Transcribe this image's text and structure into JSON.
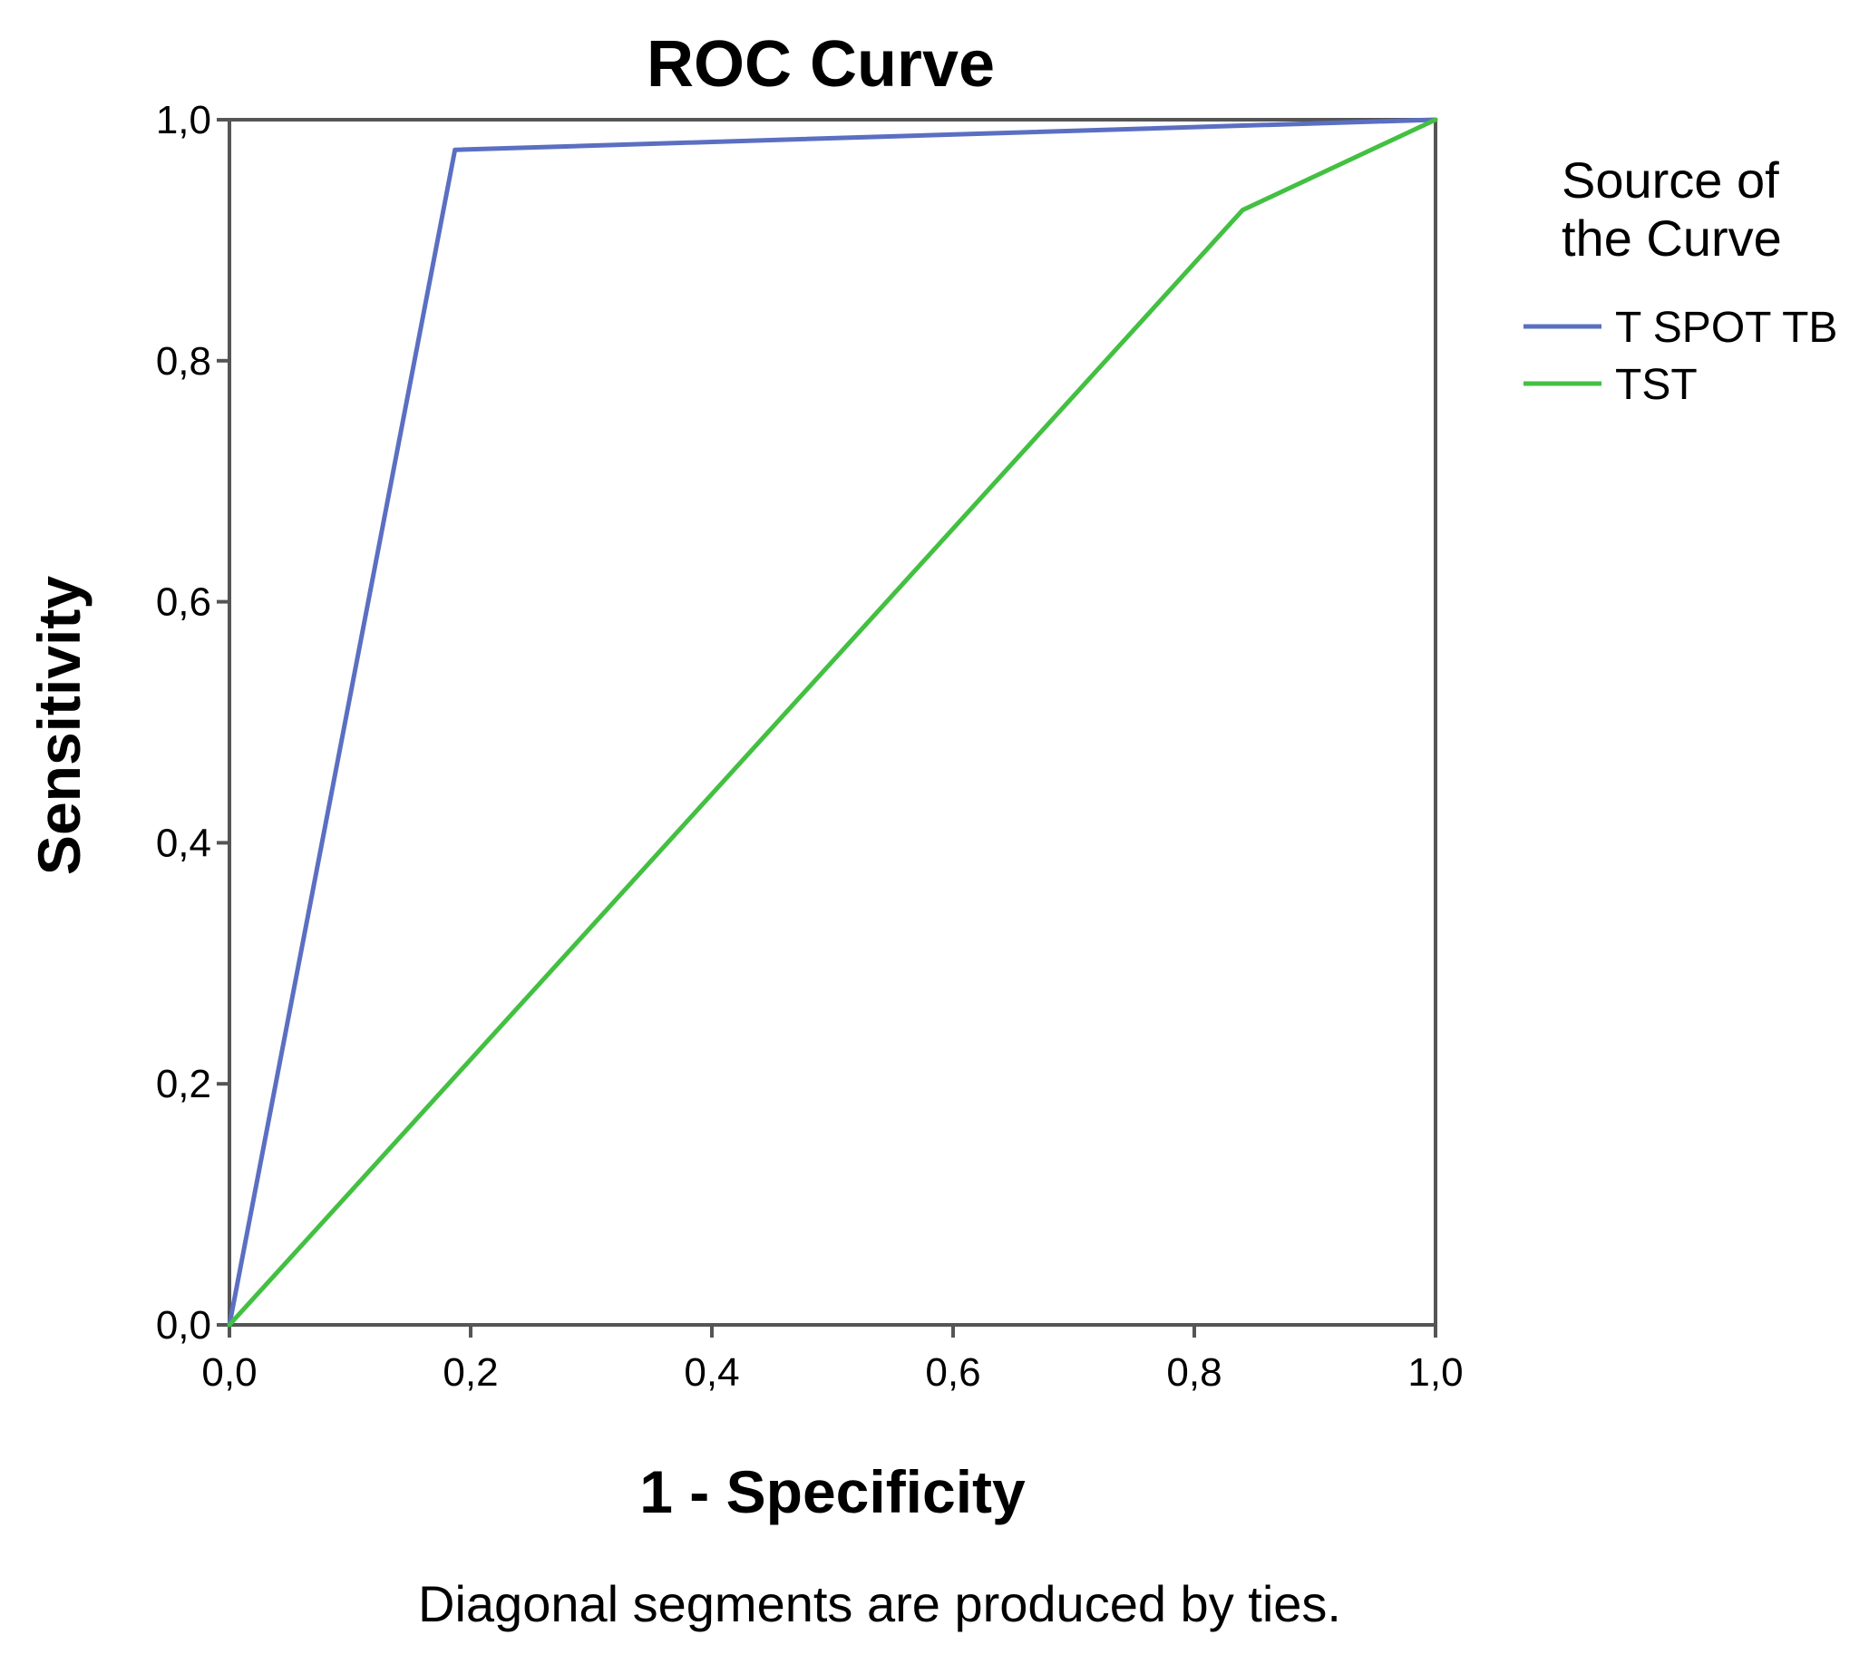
{
  "chart_data": {
    "type": "line",
    "title": "ROC Curve",
    "xlabel": "1 - Specificity",
    "ylabel": "Sensitivity",
    "xlim": [
      0,
      1
    ],
    "ylim": [
      0,
      1
    ],
    "x_ticks": [
      "0,0",
      "0,2",
      "0,4",
      "0,6",
      "0,8",
      "1,0"
    ],
    "y_ticks": [
      "0,0",
      "0,2",
      "0,4",
      "0,6",
      "0,8",
      "1,0"
    ],
    "legend_title_lines": [
      "Source of",
      "the Curve"
    ],
    "legend_position": "right",
    "series": [
      {
        "name": "T SPOT TB",
        "color": "#5b6fc2",
        "x": [
          0.0,
          0.187,
          1.0
        ],
        "y": [
          0.0,
          0.975,
          1.0
        ]
      },
      {
        "name": "TST",
        "color": "#43c042",
        "x": [
          0.0,
          0.84,
          1.0
        ],
        "y": [
          0.0,
          0.925,
          1.0
        ]
      }
    ],
    "footnote": "Diagonal segments are produced by ties.",
    "grid": false
  }
}
